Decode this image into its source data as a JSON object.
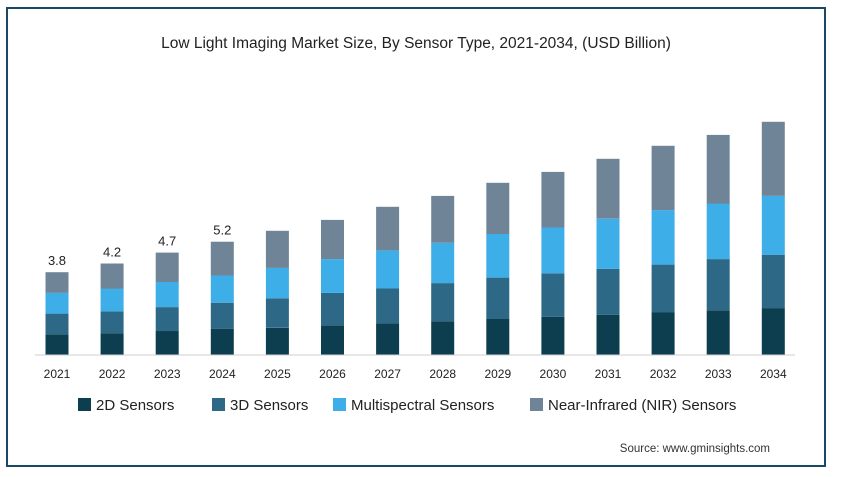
{
  "chart_data": {
    "type": "bar",
    "stacked": true,
    "title": "Low Light Imaging Market Size, By Sensor Type, 2021-2034, (USD Billion)",
    "categories": [
      "2021",
      "2022",
      "2023",
      "2024",
      "2025",
      "2026",
      "2027",
      "2028",
      "2029",
      "2030",
      "2031",
      "2032",
      "2033",
      "2034"
    ],
    "totals": [
      3.8,
      4.2,
      4.7,
      5.2,
      5.7,
      6.2,
      6.8,
      7.3,
      7.9,
      8.4,
      9.0,
      9.6,
      10.1,
      10.7
    ],
    "total_labels": [
      "3.8",
      "4.2",
      "4.7",
      "5.2",
      null,
      null,
      null,
      null,
      null,
      null,
      null,
      null,
      null,
      null
    ],
    "series": [
      {
        "name": "2D Sensors",
        "color": "#0d3e4f",
        "values": [
          0.95,
          1.0,
          1.1,
          1.2,
          1.25,
          1.35,
          1.45,
          1.55,
          1.65,
          1.75,
          1.85,
          1.95,
          2.05,
          2.15
        ]
      },
      {
        "name": "3D Sensors",
        "color": "#2d6987",
        "values": [
          0.95,
          1.0,
          1.1,
          1.2,
          1.35,
          1.5,
          1.6,
          1.75,
          1.9,
          2.0,
          2.1,
          2.2,
          2.35,
          2.45
        ]
      },
      {
        "name": "Multispectral Sensors",
        "color": "#3eaee8",
        "values": [
          0.95,
          1.05,
          1.15,
          1.25,
          1.4,
          1.55,
          1.75,
          1.85,
          2.0,
          2.1,
          2.3,
          2.5,
          2.55,
          2.7
        ]
      },
      {
        "name": "Near-Infrared (NIR) Sensors",
        "color": "#6f8597",
        "values": [
          0.95,
          1.15,
          1.35,
          1.55,
          1.7,
          1.8,
          2.0,
          2.15,
          2.35,
          2.55,
          2.75,
          2.95,
          3.15,
          3.4
        ]
      }
    ],
    "ylim": [
      0,
      11.7
    ],
    "legend_position": "bottom",
    "grid": false
  },
  "source": "Source: www.gminsights.com"
}
